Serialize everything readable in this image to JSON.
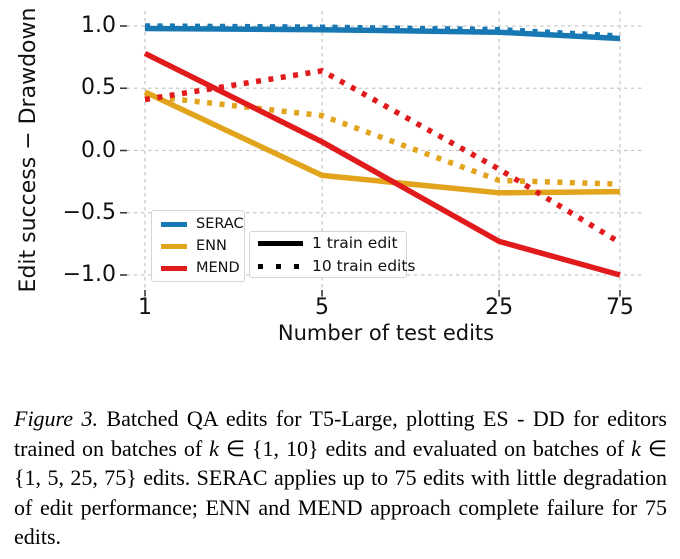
{
  "chart_data": {
    "type": "line",
    "title": "",
    "xlabel": "Number of test edits",
    "ylabel": "Edit success − Drawdown",
    "xscale": "log",
    "x": [
      1,
      5,
      25,
      75
    ],
    "xtick_labels": [
      "1",
      "5",
      "25",
      "75"
    ],
    "yticks": [
      1.0,
      0.5,
      0.0,
      -0.5,
      -1.0
    ],
    "ytick_labels": [
      "1.0",
      "0.5",
      "0.0",
      "−0.5",
      "−1.0"
    ],
    "ylim": [
      -1.12,
      1.12
    ],
    "grid": true,
    "legend_position": "lower left",
    "series": [
      {
        "name": "SERAC",
        "train_edits": 1,
        "linestyle": "solid",
        "color": "#1878b4",
        "values": [
          0.98,
          0.97,
          0.95,
          0.9
        ]
      },
      {
        "name": "SERAC",
        "train_edits": 10,
        "linestyle": "dotted",
        "color": "#1878b4",
        "values": [
          1.0,
          0.99,
          0.97,
          0.92
        ]
      },
      {
        "name": "ENN",
        "train_edits": 1,
        "linestyle": "solid",
        "color": "#e2a41c",
        "values": [
          0.47,
          -0.2,
          -0.34,
          -0.33
        ]
      },
      {
        "name": "ENN",
        "train_edits": 10,
        "linestyle": "dotted",
        "color": "#e2a41c",
        "values": [
          0.44,
          0.28,
          -0.24,
          -0.27
        ]
      },
      {
        "name": "MEND",
        "train_edits": 1,
        "linestyle": "solid",
        "color": "#e11a1c",
        "values": [
          0.78,
          0.07,
          -0.73,
          -1.0
        ]
      },
      {
        "name": "MEND",
        "train_edits": 10,
        "linestyle": "dotted",
        "color": "#e11a1c",
        "values": [
          0.41,
          0.64,
          -0.15,
          -0.74
        ]
      }
    ],
    "legend_series": [
      {
        "label": "SERAC",
        "color": "#1878b4"
      },
      {
        "label": "ENN",
        "color": "#e2a41c"
      },
      {
        "label": "MEND",
        "color": "#e11a1c"
      }
    ],
    "legend_style": [
      {
        "label": "1 train edit",
        "linestyle": "solid"
      },
      {
        "label": "10 train edits",
        "linestyle": "dotted"
      }
    ],
    "grid_color": "#c9c9c9",
    "tick_color": "#3a3a3a"
  },
  "caption": {
    "segments": [
      {
        "text": "Figure 3.",
        "style": "italic"
      },
      {
        "text": " Batched QA edits for T5-Large, plotting ES - DD for editors trained on batches of ",
        "style": "normal"
      },
      {
        "text": "k",
        "style": "var"
      },
      {
        "text": " ∈ {1, 10} edits and evaluated on batches of ",
        "style": "normal"
      },
      {
        "text": "k",
        "style": "var"
      },
      {
        "text": " ∈ {1, 5, 25, 75} edits.  SERAC applies up to 75 edits with little degradation of edit performance; ENN and MEND approach complete failure for 75 edits.",
        "style": "normal"
      }
    ]
  }
}
